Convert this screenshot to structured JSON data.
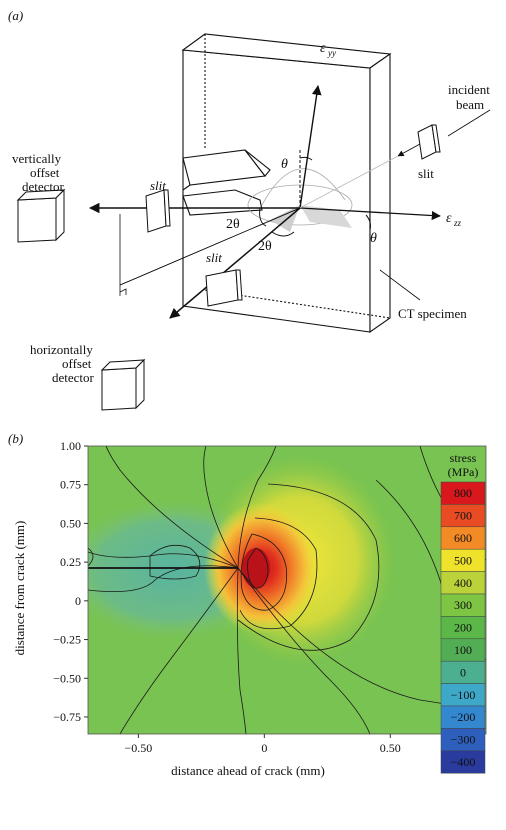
{
  "panel_a": {
    "label": "(a)",
    "strain_yy": "ε",
    "strain_yy_sub": "yy",
    "strain_zz": "ε",
    "strain_zz_sub": "zz",
    "theta": "θ",
    "two_theta": "2θ",
    "slit": "slit",
    "incident_beam": [
      "incident",
      "beam"
    ],
    "vertical_detector": [
      "vertically",
      "offset",
      "detector"
    ],
    "horizontal_detector": [
      "horizontally",
      "offset",
      "detector"
    ],
    "specimen": "CT specimen"
  },
  "panel_b": {
    "label": "(b)",
    "colorbar_title": [
      "stress",
      "(MPa)"
    ],
    "colorbar_levels": [
      {
        "value": "800",
        "color": "#d8181c"
      },
      {
        "value": "700",
        "color": "#e94b22"
      },
      {
        "value": "600",
        "color": "#f28a26"
      },
      {
        "value": "500",
        "color": "#efe22a"
      },
      {
        "value": "400",
        "color": "#bcd23a"
      },
      {
        "value": "300",
        "color": "#7ec544"
      },
      {
        "value": "200",
        "color": "#5bb848"
      },
      {
        "value": "100",
        "color": "#52ad54"
      },
      {
        "value": "0",
        "color": "#4caf90"
      },
      {
        "value": "−100",
        "color": "#3ea8c9"
      },
      {
        "value": "−200",
        "color": "#3488d0"
      },
      {
        "value": "−300",
        "color": "#2f5fbd"
      },
      {
        "value": "−400",
        "color": "#2a3b9e"
      }
    ]
  },
  "chart_data": {
    "type": "heatmap",
    "xlabel": "distance ahead of crack (mm)",
    "ylabel": "distance from crack (mm)",
    "xlim": [
      -0.7,
      0.88
    ],
    "ylim": [
      -0.86,
      1.0
    ],
    "x_ticks": [
      -0.5,
      0,
      0.5
    ],
    "x_tick_labels": [
      "−0.50",
      "0",
      "0.50"
    ],
    "y_ticks": [
      1.0,
      0.75,
      0.5,
      0.25,
      0,
      -0.25,
      -0.5,
      -0.75
    ],
    "y_tick_labels": [
      "1.00",
      "0.75",
      "0.50",
      "0.25",
      "0",
      "−0.25",
      "−0.50",
      "−0.75"
    ],
    "crack": {
      "x_start": -0.7,
      "x_end": 0.0,
      "y": 0
    },
    "peak": {
      "x": 0.07,
      "y": -0.02,
      "stress": 800
    },
    "colorbar_range": [
      -400,
      800
    ]
  }
}
